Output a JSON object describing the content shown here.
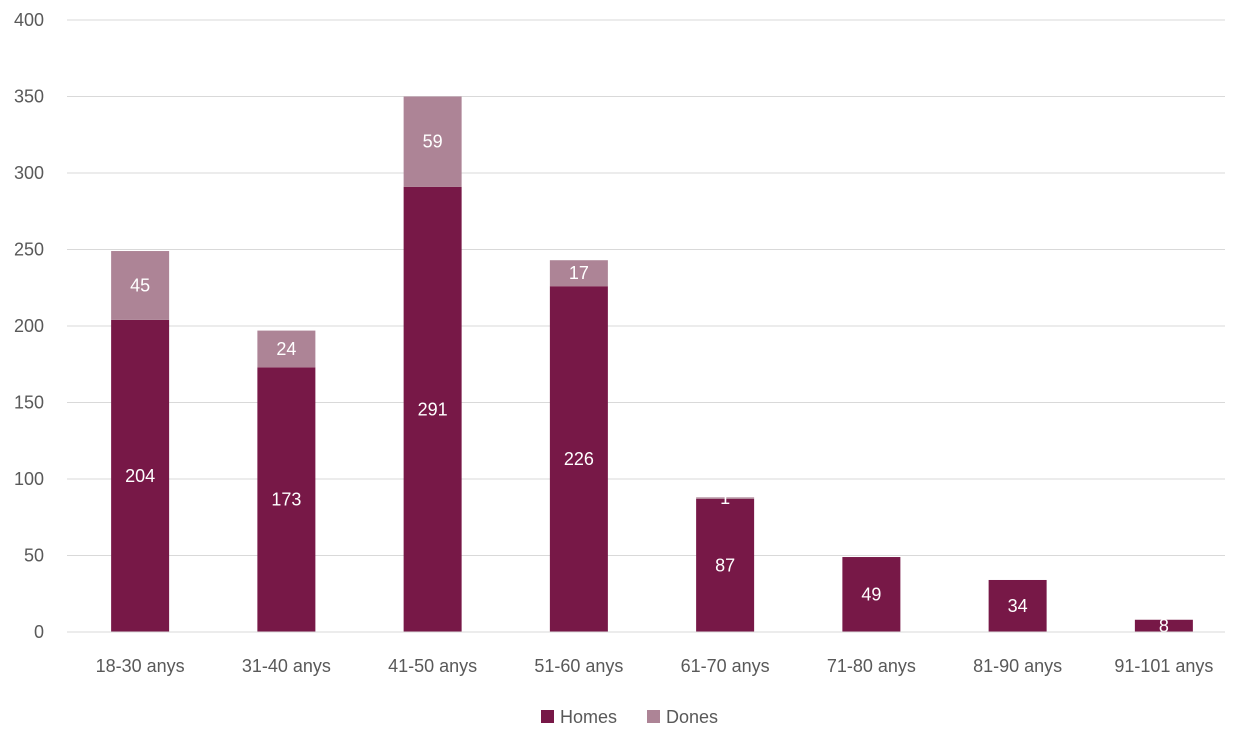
{
  "chart_data": {
    "type": "bar",
    "stacked": true,
    "categories": [
      "18-30 anys",
      "31-40 anys",
      "41-50 anys",
      "51-60 anys",
      "61-70 anys",
      "71-80 anys",
      "81-90 anys",
      "91-101 anys"
    ],
    "series": [
      {
        "name": "Homes",
        "values": [
          204,
          173,
          291,
          226,
          87,
          49,
          34,
          8
        ],
        "color": "#771847"
      },
      {
        "name": "Dones",
        "values": [
          45,
          24,
          59,
          17,
          1,
          0,
          0,
          0
        ],
        "color": "#ad8496"
      }
    ],
    "y_ticks": [
      "0",
      "50",
      "100",
      "150",
      "200",
      "250",
      "300",
      "350",
      "400"
    ],
    "ylim": [
      0,
      400
    ],
    "grid": true,
    "legend_position": "bottom",
    "title": "",
    "xlabel": "",
    "ylabel": ""
  }
}
